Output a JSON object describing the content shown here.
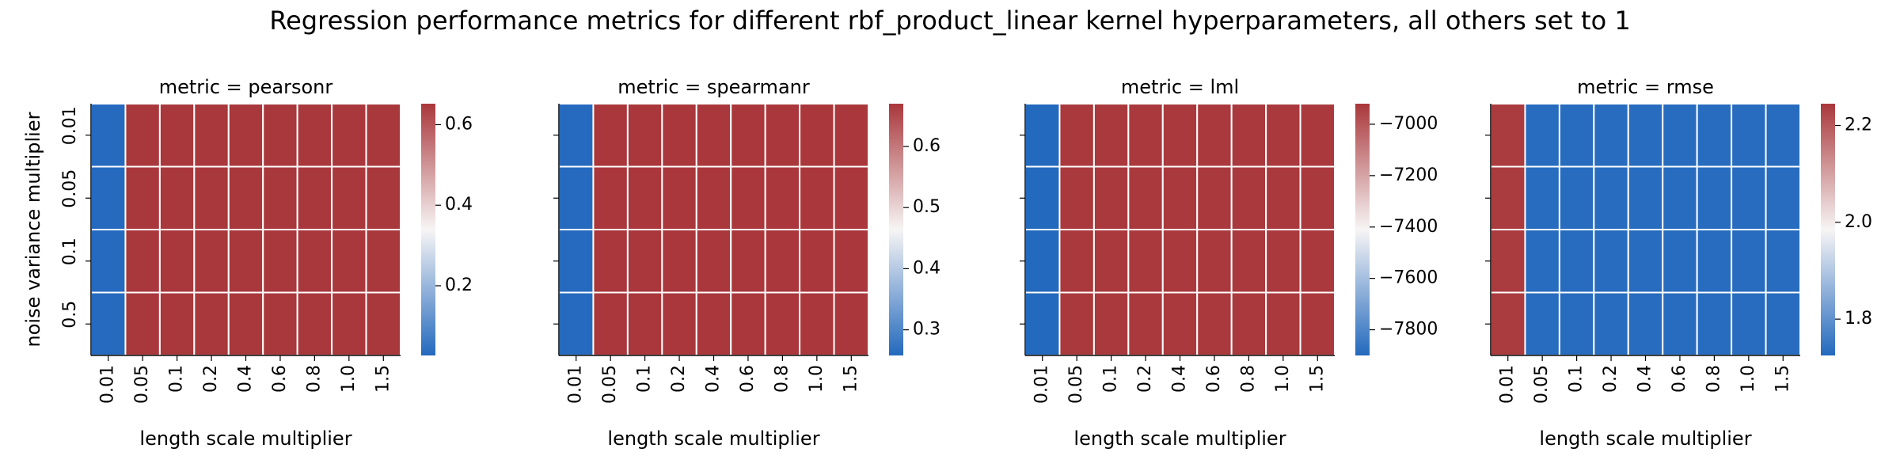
{
  "title": "Regression performance metrics for different rbf_product_linear kernel hyperparameters, all others set to 1",
  "chart_data": [
    {
      "type": "heatmap",
      "title": "metric = pearsonr",
      "xlabel": "length scale multiplier",
      "ylabel": "noise variance multiplier",
      "x_categories": [
        "0.01",
        "0.05",
        "0.1",
        "0.2",
        "0.4",
        "0.6",
        "0.8",
        "1.0",
        "1.5"
      ],
      "y_categories": [
        "0.01",
        "0.05",
        "0.1",
        "0.5"
      ],
      "values": [
        [
          0.03,
          0.65,
          0.65,
          0.65,
          0.65,
          0.65,
          0.65,
          0.65,
          0.65
        ],
        [
          0.03,
          0.65,
          0.65,
          0.65,
          0.65,
          0.65,
          0.65,
          0.65,
          0.65
        ],
        [
          0.03,
          0.65,
          0.65,
          0.65,
          0.65,
          0.65,
          0.65,
          0.65,
          0.65
        ],
        [
          0.03,
          0.65,
          0.65,
          0.65,
          0.65,
          0.65,
          0.65,
          0.65,
          0.65
        ]
      ],
      "clim": [
        0.027,
        0.652
      ],
      "cticks": [
        0.2,
        0.4,
        0.6
      ],
      "cmap": [
        "#2369bd",
        "#f7f5f5",
        "#a9373b"
      ]
    },
    {
      "type": "heatmap",
      "title": "metric = spearmanr",
      "xlabel": "length scale multiplier",
      "x_categories": [
        "0.01",
        "0.05",
        "0.1",
        "0.2",
        "0.4",
        "0.6",
        "0.8",
        "1.0",
        "1.5"
      ],
      "values": [
        [
          0.26,
          0.67,
          0.67,
          0.67,
          0.67,
          0.67,
          0.67,
          0.67,
          0.67
        ],
        [
          0.26,
          0.67,
          0.67,
          0.67,
          0.67,
          0.67,
          0.67,
          0.67,
          0.67
        ],
        [
          0.26,
          0.67,
          0.67,
          0.67,
          0.67,
          0.67,
          0.67,
          0.67,
          0.67
        ],
        [
          0.26,
          0.67,
          0.67,
          0.67,
          0.67,
          0.67,
          0.67,
          0.67,
          0.67
        ]
      ],
      "clim": [
        0.258,
        0.67
      ],
      "cticks": [
        0.3,
        0.4,
        0.5,
        0.6
      ],
      "cmap": [
        "#2369bd",
        "#f7f5f5",
        "#a9373b"
      ]
    },
    {
      "type": "heatmap",
      "title": "metric = lml",
      "xlabel": "length scale multiplier",
      "x_categories": [
        "0.01",
        "0.05",
        "0.1",
        "0.2",
        "0.4",
        "0.6",
        "0.8",
        "1.0",
        "1.5"
      ],
      "values": [
        [
          -7900,
          -6925,
          -6925,
          -6925,
          -6925,
          -6925,
          -6925,
          -6925,
          -6925
        ],
        [
          -7900,
          -6925,
          -6925,
          -6925,
          -6925,
          -6925,
          -6925,
          -6925,
          -6925
        ],
        [
          -7900,
          -6925,
          -6925,
          -6925,
          -6925,
          -6925,
          -6925,
          -6925,
          -6925
        ],
        [
          -7900,
          -6925,
          -6925,
          -6925,
          -6925,
          -6925,
          -6925,
          -6925,
          -6925
        ]
      ],
      "clim": [
        -7900,
        -6920
      ],
      "cticks": [
        {
          "value": -7800,
          "label": "−7800"
        },
        {
          "value": -7600,
          "label": "−7600"
        },
        {
          "value": -7400,
          "label": "−7400"
        },
        {
          "value": -7200,
          "label": "−7200"
        },
        {
          "value": -7000,
          "label": "−7000"
        }
      ],
      "cmap": [
        "#2369bd",
        "#f7f5f5",
        "#a9373b"
      ]
    },
    {
      "type": "heatmap",
      "title": "metric = rmse",
      "xlabel": "length scale multiplier",
      "x_categories": [
        "0.01",
        "0.05",
        "0.1",
        "0.2",
        "0.4",
        "0.6",
        "0.8",
        "1.0",
        "1.5"
      ],
      "values": [
        [
          2.24,
          1.73,
          1.73,
          1.73,
          1.73,
          1.73,
          1.73,
          1.73,
          1.73
        ],
        [
          2.24,
          1.73,
          1.73,
          1.73,
          1.73,
          1.73,
          1.73,
          1.73,
          1.73
        ],
        [
          2.24,
          1.73,
          1.73,
          1.73,
          1.73,
          1.73,
          1.73,
          1.73,
          1.73
        ],
        [
          2.24,
          1.73,
          1.73,
          1.73,
          1.73,
          1.73,
          1.73,
          1.73,
          1.73
        ]
      ],
      "clim": [
        1.725,
        2.245
      ],
      "cticks": [
        1.8,
        {
          "value": 2,
          "label": "2.0"
        },
        2.2
      ],
      "cmap": [
        "#2369bd",
        "#f7f5f5",
        "#a9373b"
      ]
    }
  ]
}
